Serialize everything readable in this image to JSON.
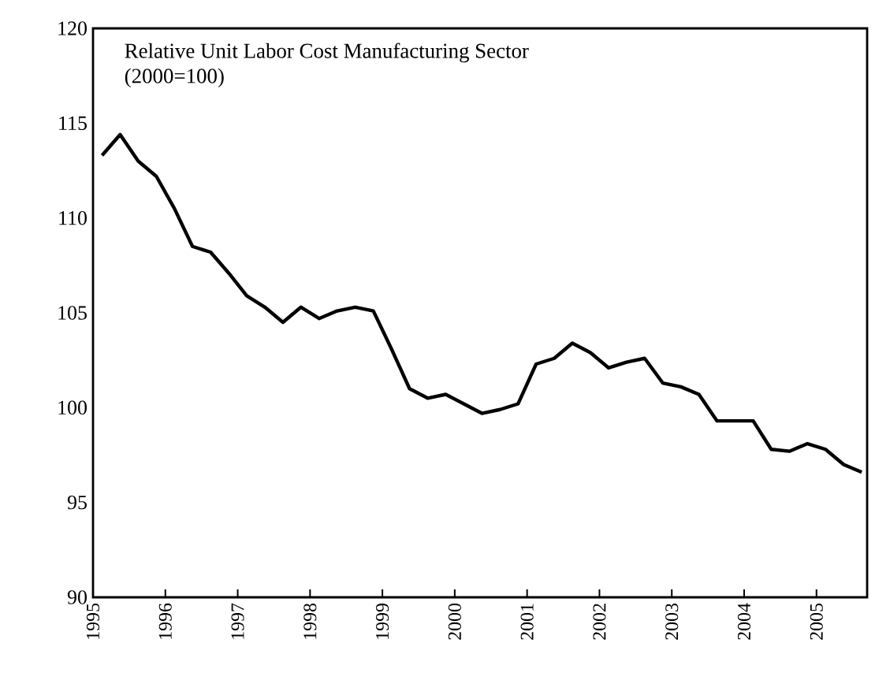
{
  "chart_data": {
    "type": "line",
    "title": "Relative Unit Labor Cost Manufacturing Sector",
    "subtitle": "(2000=100)",
    "x": [
      1995.125,
      1995.375,
      1995.625,
      1995.875,
      1996.125,
      1996.375,
      1996.625,
      1996.875,
      1997.125,
      1997.375,
      1997.625,
      1997.875,
      1998.125,
      1998.375,
      1998.625,
      1998.875,
      1999.125,
      1999.375,
      1999.625,
      1999.875,
      2000.125,
      2000.375,
      2000.625,
      2000.875,
      2001.125,
      2001.375,
      2001.625,
      2001.875,
      2002.125,
      2002.375,
      2002.625,
      2002.875,
      2003.125,
      2003.375,
      2003.625,
      2003.875,
      2004.125,
      2004.375,
      2004.625,
      2004.875,
      2005.125,
      2005.375,
      2005.625
    ],
    "series": [
      {
        "color": "#000000",
        "values": [
          113.3,
          114.4,
          113.0,
          112.2,
          110.5,
          108.5,
          108.2,
          107.1,
          105.9,
          105.3,
          104.5,
          105.3,
          104.7,
          105.1,
          105.3,
          105.1,
          103.1,
          101.0,
          100.5,
          100.7,
          100.2,
          99.7,
          99.9,
          100.2,
          102.3,
          102.6,
          103.4,
          102.9,
          102.1,
          102.4,
          102.6,
          101.3,
          101.1,
          100.7,
          99.3,
          99.3,
          99.3,
          97.8,
          97.7,
          98.1,
          97.8,
          97.0,
          96.6
        ]
      }
    ],
    "xlim": [
      1995,
      2005.7
    ],
    "xticks": [
      1995,
      1996,
      1997,
      1998,
      1999,
      2000,
      2001,
      2002,
      2003,
      2004,
      2005
    ],
    "ylim": [
      90,
      120
    ],
    "yticks": [
      90,
      95,
      100,
      105,
      110,
      115,
      120
    ],
    "grid": false,
    "marker": "none",
    "line_style": "solid"
  }
}
